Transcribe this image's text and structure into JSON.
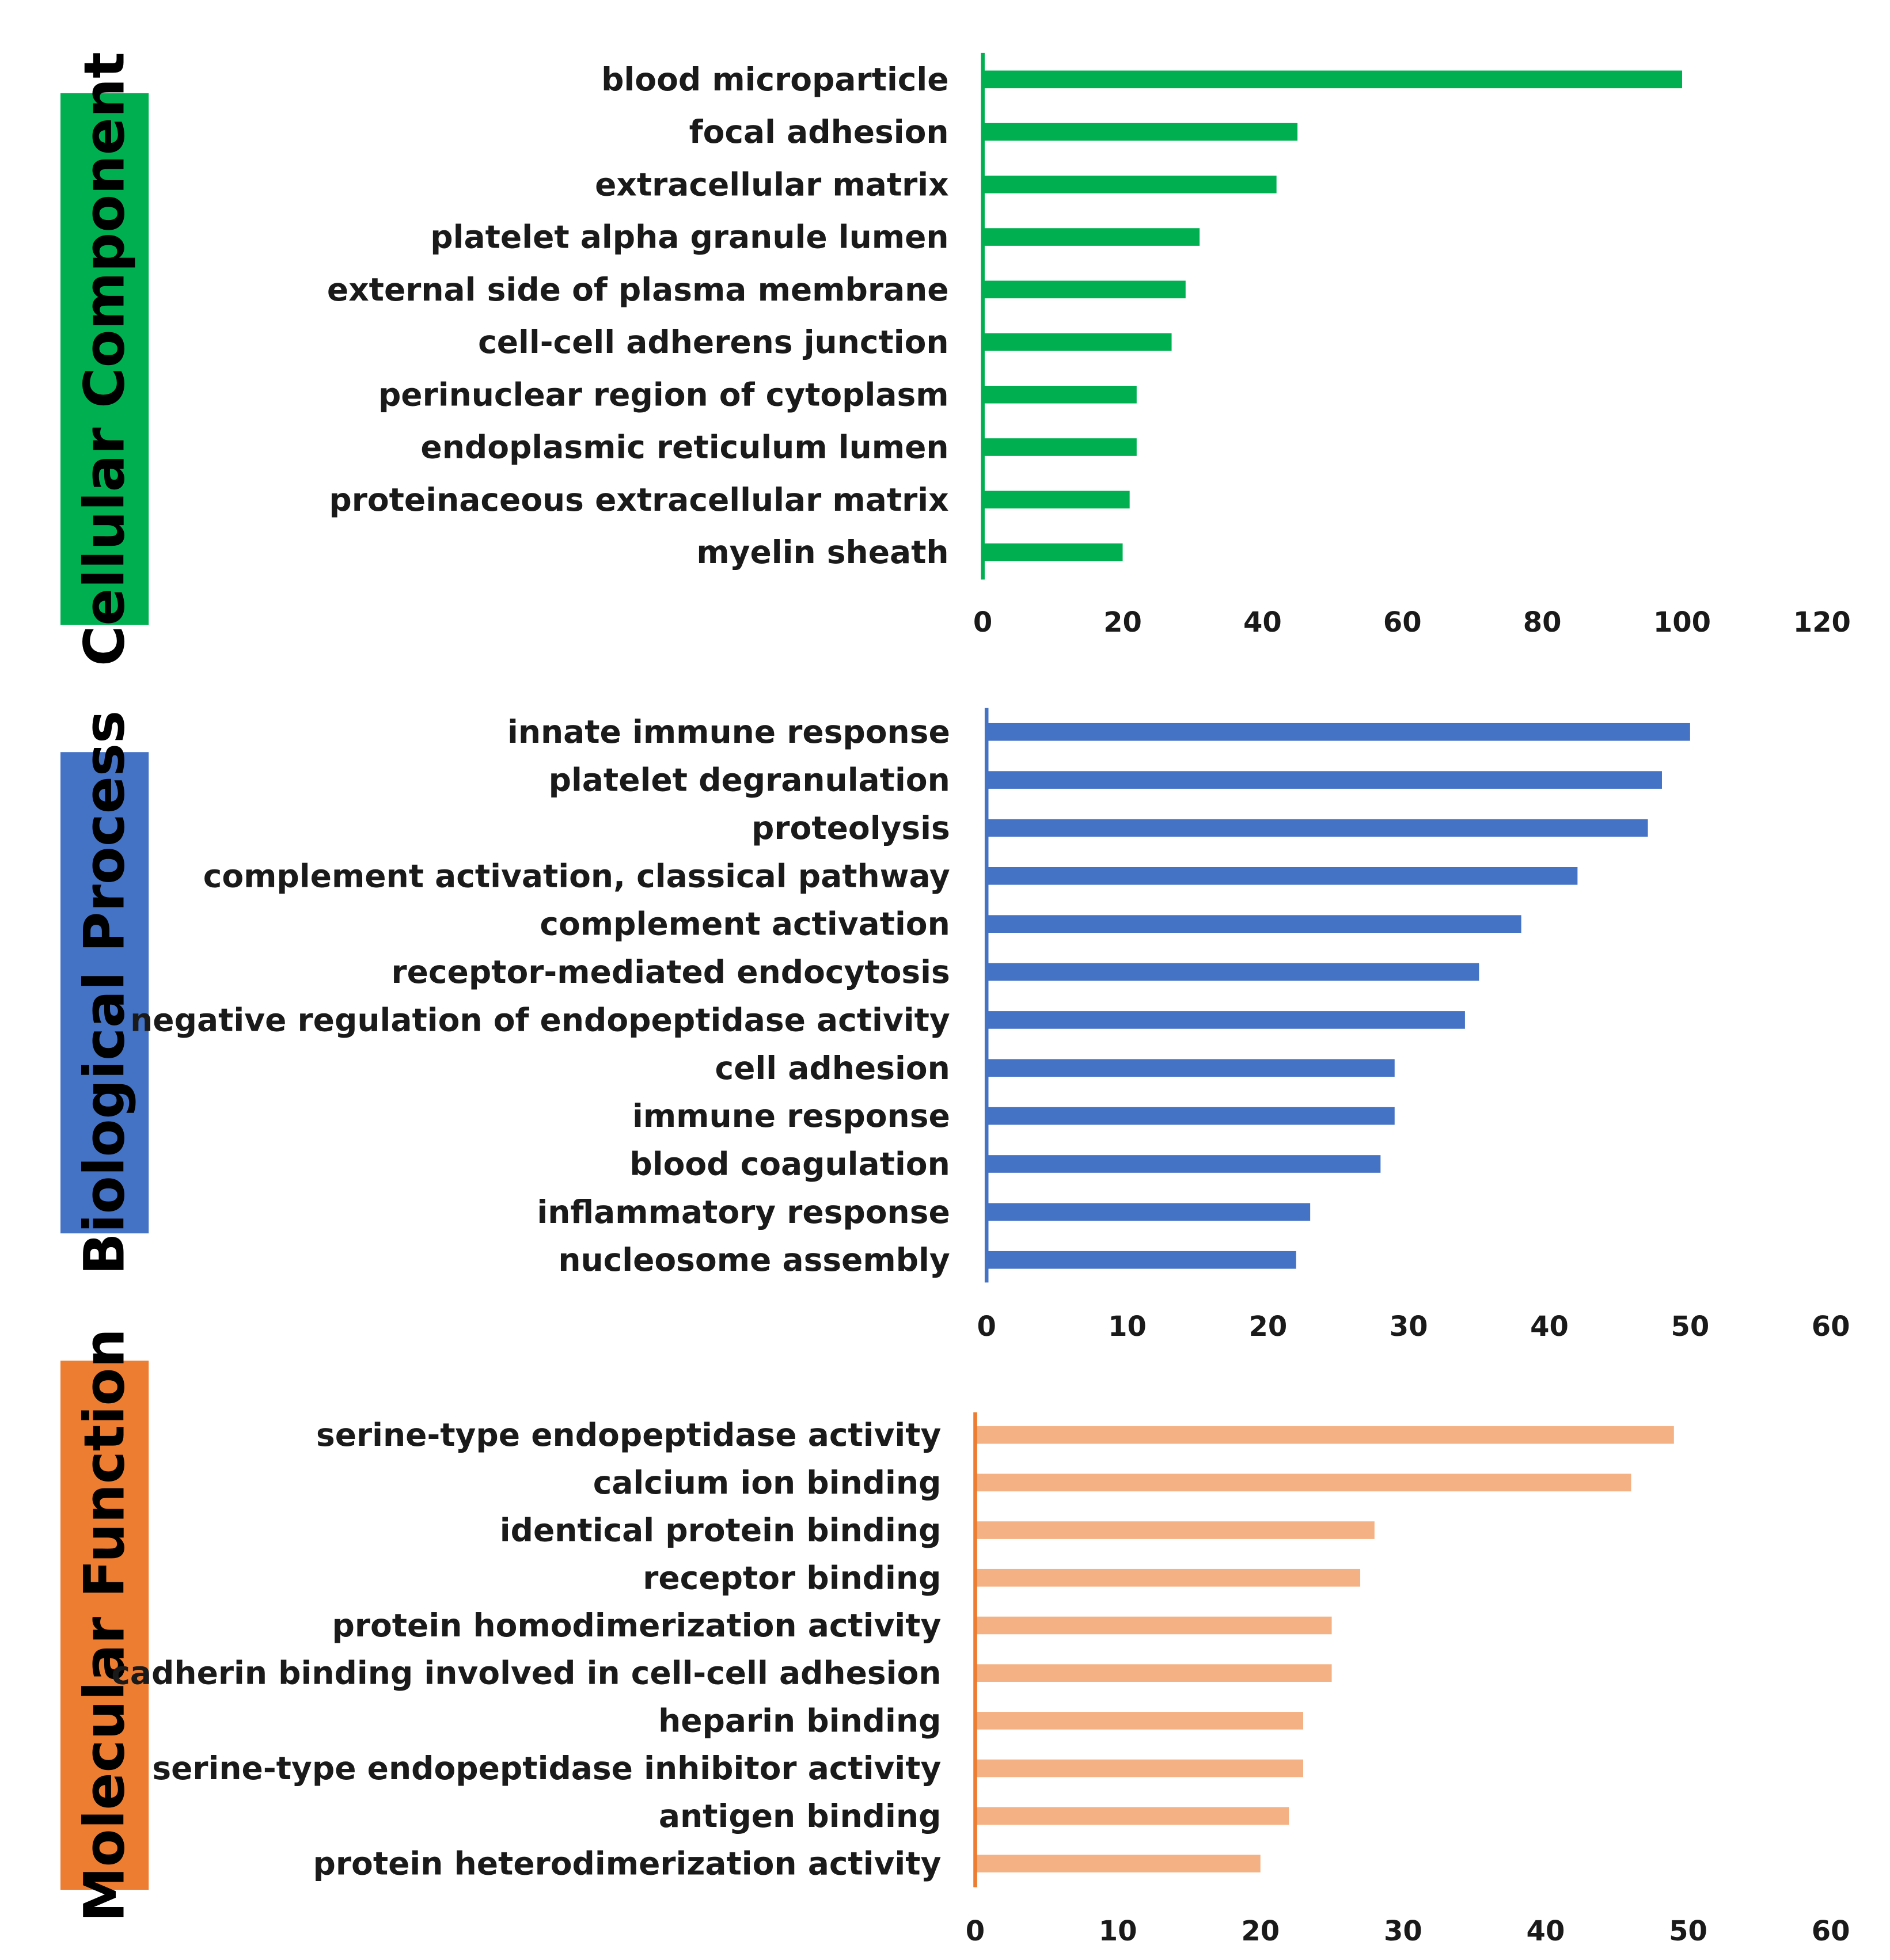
{
  "colors": {
    "cellular_component": "#00b050",
    "biological_process": "#4472c4",
    "molecular_function_label": "#ed7d31",
    "molecular_function_bars": "#f4b183",
    "molecular_function_axis": "#ed7d31"
  },
  "chart_data": [
    {
      "type": "bar",
      "orientation": "horizontal",
      "panel_label": "Cellular Component",
      "categories": [
        "blood microparticle",
        "focal adhesion",
        "extracellular matrix",
        "platelet alpha granule lumen",
        "external side of plasma membrane",
        "cell-cell adherens junction",
        "perinuclear region of cytoplasm",
        "endoplasmic reticulum lumen",
        "proteinaceous extracellular matrix",
        "myelin sheath"
      ],
      "values": [
        100,
        45,
        42,
        31,
        29,
        27,
        22,
        22,
        21,
        20
      ],
      "xlim": [
        0,
        120
      ],
      "xticks": [
        0,
        20,
        40,
        60,
        80,
        100,
        120
      ],
      "grid": false
    },
    {
      "type": "bar",
      "orientation": "horizontal",
      "panel_label": "Biological Process",
      "categories": [
        "innate immune response",
        "platelet degranulation",
        "proteolysis",
        "complement activation, classical pathway",
        "complement activation",
        "receptor-mediated endocytosis",
        "negative regulation of endopeptidase activity",
        "cell adhesion",
        "immune response",
        "blood coagulation",
        "inflammatory response",
        "nucleosome assembly"
      ],
      "values": [
        50,
        48,
        47,
        42,
        38,
        35,
        34,
        29,
        29,
        28,
        23,
        22
      ],
      "xlim": [
        0,
        60
      ],
      "xticks": [
        0,
        10,
        20,
        30,
        40,
        50,
        60
      ],
      "grid": false
    },
    {
      "type": "bar",
      "orientation": "horizontal",
      "panel_label": "Molecular Function",
      "categories": [
        "serine-type endopeptidase activity",
        "calcium ion binding",
        "identical protein binding",
        "receptor binding",
        "protein homodimerization activity",
        "cadherin binding involved in cell-cell adhesion",
        "heparin binding",
        "serine-type endopeptidase inhibitor activity",
        "antigen binding",
        "protein heterodimerization activity"
      ],
      "values": [
        49,
        46,
        28,
        27,
        25,
        25,
        23,
        23,
        22,
        20
      ],
      "xlim": [
        0,
        60
      ],
      "xticks": [
        0,
        10,
        20,
        30,
        40,
        50,
        60
      ],
      "grid": false
    }
  ]
}
